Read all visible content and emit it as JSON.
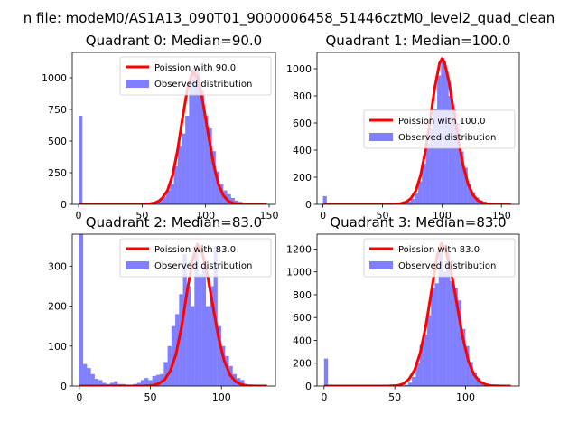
{
  "suptitle": "n file: modeM0/AS1A13_090T01_9000006458_51446cztM0_level2_quad_clean",
  "chart_data": [
    {
      "type": "bar",
      "title": "Quadrant 0: Median=90.0",
      "xticks": [
        0,
        50,
        100,
        150
      ],
      "yticks": [
        0,
        250,
        500,
        750,
        1000
      ],
      "xlim": [
        -5,
        155
      ],
      "ylim": [
        0,
        1200
      ],
      "bin_width": 3,
      "hist_x": [
        0,
        3,
        6,
        9,
        12,
        15,
        18,
        21,
        24,
        27,
        30,
        33,
        36,
        39,
        42,
        45,
        48,
        51,
        54,
        57,
        60,
        63,
        66,
        69,
        72,
        75,
        78,
        81,
        84,
        87,
        90,
        93,
        96,
        99,
        102,
        105,
        108,
        111,
        114,
        117,
        120,
        123,
        126,
        129,
        132,
        135,
        138,
        141,
        144,
        147
      ],
      "hist_values": [
        700,
        10,
        5,
        3,
        2,
        2,
        2,
        2,
        2,
        2,
        2,
        2,
        2,
        2,
        2,
        2,
        3,
        4,
        6,
        10,
        20,
        40,
        60,
        110,
        160,
        300,
        460,
        560,
        700,
        990,
        1080,
        1050,
        900,
        700,
        600,
        420,
        260,
        160,
        110,
        80,
        50,
        30,
        20,
        10,
        5,
        3,
        2,
        0,
        0,
        0
      ],
      "poisson_x": [
        0,
        20,
        40,
        50,
        55,
        60,
        63,
        66,
        70,
        74,
        78,
        82,
        86,
        90,
        94,
        98,
        102,
        106,
        110,
        114,
        118,
        122,
        126,
        130,
        140,
        148
      ],
      "poisson_values": [
        0,
        0,
        0,
        1,
        3,
        12,
        25,
        50,
        110,
        230,
        430,
        690,
        930,
        1050,
        1000,
        800,
        560,
        330,
        160,
        70,
        25,
        8,
        2,
        0,
        0,
        0
      ],
      "legend": [
        "Poission with 90.0",
        "Observed distribution"
      ],
      "legend_position": "top-right"
    },
    {
      "type": "bar",
      "title": "Quadrant 1: Median=100.0",
      "xticks": [
        0,
        50,
        100,
        150
      ],
      "yticks": [
        0,
        200,
        400,
        600,
        800,
        1000
      ],
      "xlim": [
        -5,
        165
      ],
      "ylim": [
        0,
        1120
      ],
      "bin_width": 3.2,
      "hist_x": [
        0,
        3.2,
        6.4,
        9.6,
        12.8,
        16,
        19.2,
        22.4,
        25.6,
        28.8,
        32,
        35.2,
        38.4,
        41.6,
        44.8,
        48,
        51.2,
        54.4,
        57.6,
        60.8,
        64,
        67.2,
        70.4,
        73.6,
        76.8,
        80,
        83.2,
        86.4,
        89.6,
        92.8,
        96,
        99.2,
        102.4,
        105.6,
        108.8,
        112,
        115.2,
        118.4,
        121.6,
        124.8,
        128,
        131.2,
        134.4,
        137.6,
        140.8,
        144,
        147.2,
        150.4,
        153.6
      ],
      "hist_values": [
        60,
        5,
        3,
        2,
        2,
        2,
        2,
        2,
        2,
        2,
        2,
        2,
        2,
        2,
        2,
        2,
        2,
        2,
        2,
        3,
        5,
        10,
        20,
        40,
        80,
        170,
        300,
        450,
        560,
        700,
        950,
        1080,
        980,
        800,
        700,
        600,
        390,
        270,
        150,
        90,
        50,
        30,
        20,
        10,
        5,
        3,
        2,
        0,
        0
      ],
      "poisson_x": [
        0,
        30,
        50,
        60,
        65,
        70,
        74,
        78,
        82,
        86,
        90,
        94,
        98,
        100,
        102,
        106,
        110,
        114,
        118,
        122,
        126,
        130,
        135,
        140,
        150,
        158
      ],
      "poisson_values": [
        0,
        0,
        0,
        1,
        5,
        18,
        45,
        100,
        210,
        390,
        620,
        860,
        1040,
        1075,
        1050,
        900,
        680,
        460,
        280,
        150,
        70,
        30,
        8,
        2,
        0,
        0
      ],
      "legend": [
        "Poission with 100.0",
        "Observed distribution"
      ],
      "legend_position": "center-right"
    },
    {
      "type": "bar",
      "title": "Quadrant 2: Median=83.0",
      "xticks": [
        0,
        50,
        100
      ],
      "yticks": [
        0,
        100,
        200,
        300
      ],
      "xlim": [
        -5,
        138
      ],
      "ylim": [
        0,
        380
      ],
      "bin_width": 2.7,
      "hist_x": [
        0,
        2.7,
        5.4,
        8.1,
        10.8,
        13.5,
        16.2,
        18.9,
        21.6,
        24.3,
        27,
        29.7,
        32.4,
        35.1,
        37.8,
        40.5,
        43.2,
        45.9,
        48.6,
        51.3,
        54,
        56.7,
        59.4,
        62.1,
        64.8,
        67.5,
        70.2,
        72.9,
        75.6,
        78.3,
        81,
        83.7,
        86.4,
        89.1,
        91.8,
        94.5,
        97.2,
        99.9,
        102.6,
        105.3,
        108,
        110.7,
        113.4,
        116.1,
        118.8,
        121.5,
        124.2,
        126.9
      ],
      "hist_values": [
        380,
        55,
        45,
        30,
        18,
        15,
        8,
        5,
        8,
        12,
        5,
        5,
        3,
        3,
        5,
        8,
        15,
        20,
        15,
        25,
        28,
        30,
        60,
        100,
        150,
        180,
        230,
        330,
        250,
        200,
        340,
        280,
        300,
        200,
        250,
        350,
        150,
        100,
        75,
        50,
        30,
        20,
        15,
        5,
        3,
        2,
        0,
        0
      ],
      "poisson_x": [
        0,
        30,
        45,
        52,
        56,
        60,
        64,
        68,
        72,
        76,
        80,
        83,
        86,
        90,
        94,
        98,
        102,
        106,
        110,
        114,
        118,
        125,
        132
      ],
      "poisson_values": [
        0,
        0,
        0,
        2,
        6,
        16,
        38,
        80,
        150,
        240,
        320,
        355,
        340,
        280,
        200,
        120,
        62,
        28,
        11,
        4,
        1,
        0,
        0
      ],
      "legend": [
        "Poission with 83.0",
        "Observed distribution"
      ],
      "legend_position": "top-right"
    },
    {
      "type": "bar",
      "title": "Quadrant 3: Median=83.0",
      "xticks": [
        0,
        50,
        100
      ],
      "yticks": [
        0,
        200,
        400,
        600,
        800,
        1000,
        1200
      ],
      "xlim": [
        -5,
        138
      ],
      "ylim": [
        0,
        1330
      ],
      "bin_width": 2.7,
      "hist_x": [
        0,
        2.7,
        5.4,
        8.1,
        10.8,
        13.5,
        16.2,
        18.9,
        21.6,
        24.3,
        27,
        29.7,
        32.4,
        35.1,
        37.8,
        40.5,
        43.2,
        45.9,
        48.6,
        51.3,
        54,
        56.7,
        59.4,
        62.1,
        64.8,
        67.5,
        70.2,
        72.9,
        75.6,
        78.3,
        81,
        83.7,
        86.4,
        89.1,
        91.8,
        94.5,
        97.2,
        99.9,
        102.6,
        105.3,
        108,
        110.7,
        113.4,
        116.1,
        118.8,
        121.5,
        124.2,
        126.9
      ],
      "hist_values": [
        240,
        5,
        3,
        2,
        2,
        2,
        2,
        2,
        2,
        2,
        2,
        2,
        2,
        2,
        2,
        2,
        2,
        2,
        2,
        3,
        5,
        10,
        30,
        80,
        200,
        360,
        450,
        620,
        860,
        900,
        1180,
        1000,
        1170,
        920,
        860,
        750,
        500,
        350,
        210,
        120,
        70,
        40,
        20,
        10,
        5,
        3,
        0,
        0
      ],
      "poisson_x": [
        0,
        30,
        45,
        52,
        56,
        60,
        64,
        68,
        72,
        76,
        80,
        83,
        86,
        90,
        94,
        98,
        102,
        106,
        110,
        114,
        118,
        125,
        132
      ],
      "poisson_values": [
        0,
        0,
        0,
        5,
        20,
        60,
        140,
        290,
        530,
        840,
        1140,
        1250,
        1190,
        990,
        710,
        430,
        220,
        100,
        40,
        14,
        4,
        0,
        0
      ],
      "legend": [
        "Poission with 83.0",
        "Observed distribution"
      ],
      "legend_position": "top-right"
    }
  ]
}
